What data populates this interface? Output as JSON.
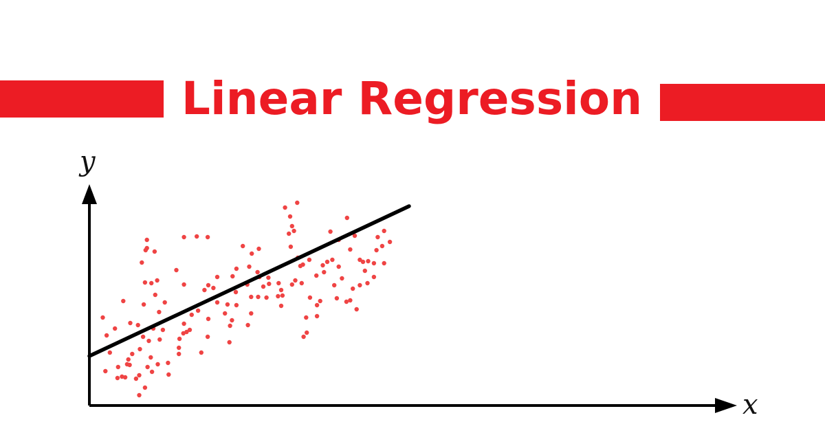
{
  "header": {
    "title": "Linear Regression",
    "accent_color": "#ec1c24"
  },
  "chart_data": {
    "type": "scatter",
    "title": "Linear Regression",
    "xlabel": "x",
    "ylabel": "y",
    "grid": false,
    "point_color": "#ef4444",
    "line_color": "#000000",
    "xlim": [
      0,
      1000
    ],
    "ylim": [
      0,
      360
    ],
    "regression_line": {
      "x": [
        0,
        500
      ],
      "y": [
        72,
        290
      ]
    },
    "points": [
      [
        21,
        128
      ],
      [
        40,
        112
      ],
      [
        84,
        100
      ],
      [
        109,
        136
      ],
      [
        157,
        110
      ],
      [
        110,
        96
      ],
      [
        53,
        152
      ],
      [
        85,
        147
      ],
      [
        64,
        120
      ],
      [
        170,
        138
      ],
      [
        148,
        176
      ],
      [
        168,
        246
      ],
      [
        87,
        179
      ],
      [
        90,
        229
      ],
      [
        118,
        150
      ],
      [
        123,
        62
      ],
      [
        141,
        97
      ],
      [
        152,
        107
      ],
      [
        180,
        168
      ],
      [
        200,
        187
      ],
      [
        200,
        150
      ],
      [
        186,
        175
      ],
      [
        136,
        197
      ],
      [
        147,
        105
      ],
      [
        148,
        119
      ],
      [
        186,
        126
      ],
      [
        148,
        245
      ],
      [
        91,
        56
      ],
      [
        61,
        67
      ],
      [
        73,
        39
      ],
      [
        78,
        44
      ],
      [
        100,
        112
      ],
      [
        102,
        224
      ],
      [
        88,
        226
      ],
      [
        106,
        182
      ],
      [
        90,
        241
      ],
      [
        82,
        208
      ],
      [
        97,
        178
      ],
      [
        87,
        26
      ],
      [
        115,
        110
      ],
      [
        76,
        117
      ],
      [
        63,
        59
      ],
      [
        79,
        82
      ],
      [
        59,
        60
      ],
      [
        45,
        56
      ],
      [
        27,
        102
      ],
      [
        32,
        77
      ],
      [
        44,
        40
      ],
      [
        56,
        41
      ],
      [
        78,
        15
      ],
      [
        25,
        50
      ],
      [
        93,
        94
      ],
      [
        103,
        161
      ],
      [
        160,
        132
      ],
      [
        175,
        77
      ],
      [
        185,
        100
      ],
      [
        194,
        171
      ],
      [
        185,
        245
      ],
      [
        212,
        134
      ],
      [
        220,
        116
      ],
      [
        230,
        199
      ],
      [
        240,
        232
      ],
      [
        253,
        158
      ],
      [
        264,
        158
      ],
      [
        272,
        173
      ],
      [
        296,
        178
      ],
      [
        247,
        176
      ],
      [
        250,
        202
      ],
      [
        266,
        187
      ],
      [
        224,
        188
      ],
      [
        229,
        165
      ],
      [
        230,
        146
      ],
      [
        216,
        147
      ],
      [
        223,
        124
      ],
      [
        254,
        221
      ],
      [
        281,
        177
      ],
      [
        300,
        168
      ],
      [
        302,
        160
      ],
      [
        314,
        275
      ],
      [
        306,
        288
      ],
      [
        317,
        261
      ],
      [
        326,
        215
      ],
      [
        317,
        176
      ],
      [
        322,
        182
      ],
      [
        330,
        203
      ],
      [
        332,
        178
      ],
      [
        312,
        250
      ],
      [
        355,
        189
      ],
      [
        344,
        212
      ],
      [
        345,
        157
      ],
      [
        367,
        194
      ],
      [
        390,
        241
      ],
      [
        383,
        175
      ],
      [
        340,
        106
      ],
      [
        339,
        128
      ],
      [
        335,
        100
      ],
      [
        315,
        231
      ],
      [
        356,
        146
      ],
      [
        361,
        152
      ],
      [
        377,
        253
      ],
      [
        415,
        247
      ],
      [
        390,
        202
      ],
      [
        372,
        209
      ],
      [
        395,
        185
      ],
      [
        408,
        227
      ],
      [
        412,
        170
      ],
      [
        418,
        140
      ],
      [
        423,
        175
      ],
      [
        445,
        207
      ],
      [
        451,
        245
      ],
      [
        458,
        232
      ],
      [
        435,
        178
      ],
      [
        408,
        153
      ],
      [
        423,
        212
      ],
      [
        380,
        212
      ],
      [
        402,
        151
      ],
      [
        265,
        228
      ],
      [
        295,
        159
      ],
      [
        320,
        254
      ],
      [
        325,
        295
      ],
      [
        334,
        205
      ],
      [
        365,
        204
      ],
      [
        403,
        273
      ],
      [
        428,
        209
      ],
      [
        449,
        226
      ],
      [
        445,
        187
      ],
      [
        300,
        145
      ],
      [
        277,
        157
      ],
      [
        263,
        194
      ],
      [
        140,
        75
      ],
      [
        124,
        45
      ],
      [
        107,
        60
      ],
      [
        67,
        75
      ],
      [
        96,
        70
      ],
      [
        51,
        42
      ],
      [
        98,
        49
      ],
      [
        140,
        84
      ],
      [
        219,
        92
      ],
      [
        253,
        134
      ],
      [
        280,
        186
      ],
      [
        248,
        117
      ],
      [
        356,
        130
      ],
      [
        387,
        156
      ],
      [
        470,
        238
      ],
      [
        461,
        254
      ],
      [
        436,
        210
      ],
      [
        461,
        207
      ],
      [
        431,
        196
      ]
    ]
  }
}
